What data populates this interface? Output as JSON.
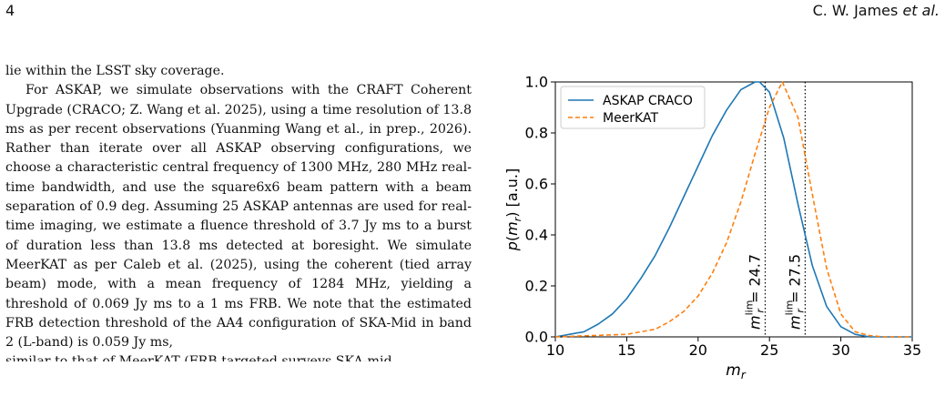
{
  "header": {
    "page_number": "4",
    "running_head_authors": "C. W. James",
    "running_head_etal": "et al."
  },
  "body": {
    "p1": "lie within the LSST sky coverage.",
    "p2": "For ASKAP, we simulate observations with the CRAFT Coherent Upgrade (CRACO; Z. Wang et al. 2025), using a time resolution of 13.8 ms as per recent observations (Yuanming Wang et al., in prep., 2026). Rather than iterate over all ASKAP observing configurations, we choose a characteristic central frequency of 1300 MHz, 280 MHz real-time bandwidth, and use the square6x6 beam pattern with a beam separation of 0.9 deg. Assuming 25 ASKAP antennas are used for real-time imaging, we estimate a fluence threshold of 3.7 Jy ms to a burst of duration less than 13.8 ms detected at boresight. We simulate MeerKAT as per Caleb et al. (2025), using the coherent (tied array beam) mode, with a mean frequency of 1284 MHz, yielding a threshold of 0.069 Jy ms to a 1 ms FRB. We note that the estimated FRB detection threshold of the AA4 configuration of SKA-Mid in band 2 (L-band) is 0.059 Jy ms,",
    "p3": "similar to that of MeerKAT (FRB targeted surveys SKA-mid"
  },
  "chart_data": {
    "type": "line",
    "xlabel": "m_r",
    "ylabel": "p(m_r) [a.u.]",
    "xlim": [
      10,
      35
    ],
    "ylim": [
      0,
      1.0
    ],
    "xticks": [
      10,
      15,
      20,
      25,
      30,
      35
    ],
    "yticks": [
      0.0,
      0.2,
      0.4,
      0.6,
      0.8,
      1.0
    ],
    "xtick_labels": [
      "10",
      "15",
      "20",
      "25",
      "30",
      "35"
    ],
    "ytick_labels": [
      "0.0",
      "0.2",
      "0.4",
      "0.6",
      "0.8",
      "1.0"
    ],
    "grid": false,
    "legend_position": "top-left",
    "series": [
      {
        "name": "ASKAP CRACO",
        "style": "solid",
        "color": "#1f77b4",
        "x": [
          10,
          11,
          12,
          13,
          14,
          15,
          16,
          17,
          18,
          19,
          20,
          21,
          22,
          23,
          24,
          24.3,
          25,
          26,
          27,
          28,
          29,
          30,
          31,
          32,
          33,
          34,
          35
        ],
        "y": [
          0.0,
          0.01,
          0.02,
          0.05,
          0.09,
          0.15,
          0.23,
          0.32,
          0.43,
          0.55,
          0.67,
          0.79,
          0.89,
          0.97,
          1.0,
          1.0,
          0.96,
          0.78,
          0.52,
          0.28,
          0.12,
          0.04,
          0.01,
          0.0,
          0.0,
          0.0,
          0.0
        ]
      },
      {
        "name": "MeerKAT",
        "style": "dashed",
        "color": "#ff7f0e",
        "x": [
          10,
          15,
          17,
          18,
          19,
          20,
          21,
          22,
          23,
          24,
          25,
          25.9,
          27,
          28,
          29,
          30,
          31,
          32,
          33,
          34,
          35
        ],
        "y": [
          0.0,
          0.01,
          0.03,
          0.06,
          0.1,
          0.16,
          0.25,
          0.37,
          0.53,
          0.72,
          0.9,
          1.0,
          0.86,
          0.56,
          0.27,
          0.09,
          0.02,
          0.005,
          0.0,
          0.0,
          0.0
        ]
      }
    ],
    "annotations": [
      {
        "x": 24.7,
        "label_main": "m",
        "label_sub": "r",
        "label_sup": "lim",
        "label_value": "= 24.7",
        "style": "dotted"
      },
      {
        "x": 27.5,
        "label_main": "m",
        "label_sub": "r",
        "label_sup": "lim",
        "label_value": "= 27.5",
        "style": "dotted"
      }
    ]
  }
}
